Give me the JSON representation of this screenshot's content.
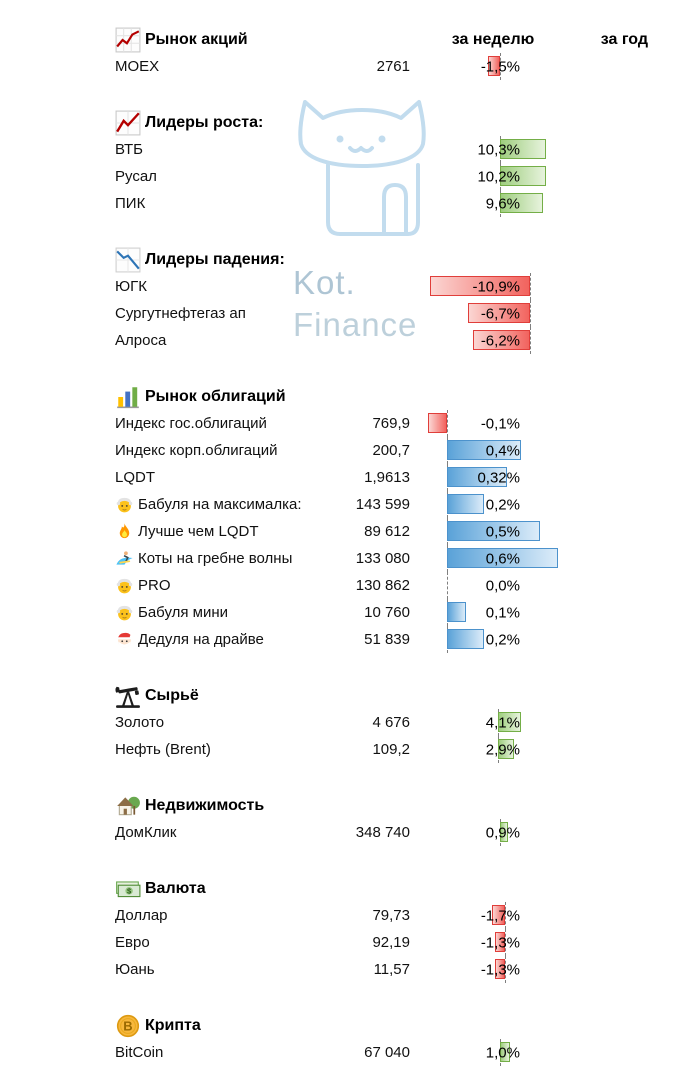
{
  "watermark": {
    "line1": "Kot.",
    "line2": "Finance"
  },
  "colors": {
    "positive_green": "#74ae47",
    "positive_blue": "#4c92cc",
    "negative_red": "#e03e3a",
    "watermark_blue": "#bcd8ec"
  },
  "chart_data": {
    "type": "table",
    "columns": {
      "week": "за неделю",
      "year": "за год"
    },
    "groups": [
      {
        "id": "stocks",
        "title": "Рынок акций",
        "icon": "stock-chart-icon",
        "bar_color": "green",
        "rows": [
          {
            "label": "MOEX",
            "value": "2761",
            "change": "-1,5%",
            "change_pct": -1.5
          }
        ]
      },
      {
        "id": "growth",
        "title": "Лидеры роста:",
        "icon": "growth-chart-icon",
        "bar_color": "green",
        "rows": [
          {
            "label": "ВТБ",
            "value": "",
            "change": "10,3%",
            "change_pct": 10.3
          },
          {
            "label": "Русал",
            "value": "",
            "change": "10,2%",
            "change_pct": 10.2
          },
          {
            "label": "ПИК",
            "value": "",
            "change": "9,6%",
            "change_pct": 9.6
          }
        ]
      },
      {
        "id": "fall",
        "title": "Лидеры падения:",
        "icon": "fall-chart-icon",
        "bar_color": "green",
        "rows": [
          {
            "label": "ЮГК",
            "value": "",
            "change": "-10,9%",
            "change_pct": -10.9
          },
          {
            "label": "Сургутнефтегаз ап",
            "value": "",
            "change": "-6,7%",
            "change_pct": -6.7
          },
          {
            "label": "Алроса",
            "value": "",
            "change": "-6,2%",
            "change_pct": -6.2
          }
        ]
      },
      {
        "id": "bonds",
        "title": "Рынок облигаций",
        "icon": "bond-chart-icon",
        "bar_color": "blue",
        "rows": [
          {
            "label": "Индекс гос.облигаций",
            "value": "769,9",
            "change": "-0,1%",
            "change_pct": -0.1
          },
          {
            "label": "Индекс корп.облигаций",
            "value": "200,7",
            "change": "0,4%",
            "change_pct": 0.4
          },
          {
            "label": "LQDT",
            "value": "1,9613",
            "change": "0,32%",
            "change_pct": 0.32
          },
          {
            "label": "Бабуля на максималка:",
            "icon": "grandma-icon",
            "value": "143 599",
            "change": "0,2%",
            "change_pct": 0.2
          },
          {
            "label": "Лучше чем LQDT",
            "icon": "fire-icon",
            "value": "89 612",
            "change": "0,5%",
            "change_pct": 0.5
          },
          {
            "label": "Коты на гребне волны",
            "icon": "surfer-icon",
            "value": "133 080",
            "change": "0,6%",
            "change_pct": 0.6
          },
          {
            "label": "PRO",
            "icon": "grandma-icon",
            "value": "130 862",
            "change": "0,0%",
            "change_pct": 0.0
          },
          {
            "label": "Бабуля мини",
            "icon": "grandma-icon",
            "value": "10 760",
            "change": "0,1%",
            "change_pct": 0.1
          },
          {
            "label": "Дедуля на драйве",
            "icon": "santa-icon",
            "value": "51 839",
            "change": "0,2%",
            "change_pct": 0.2
          }
        ]
      },
      {
        "id": "commodities",
        "title": "Сырьё",
        "icon": "oil-pump-icon",
        "bar_color": "green",
        "rows": [
          {
            "label": "Золото",
            "value": "4 676",
            "change": "4,1%",
            "change_pct": 4.1
          },
          {
            "label": "Нефть (Brent)",
            "value": "109,2",
            "change": "2,9%",
            "change_pct": 2.9
          }
        ]
      },
      {
        "id": "realestate",
        "title": "Недвижимость",
        "icon": "house-icon",
        "bar_color": "green",
        "rows": [
          {
            "label": "ДомКлик",
            "value": "348 740",
            "change": "0,9%",
            "change_pct": 0.9
          }
        ]
      },
      {
        "id": "currency",
        "title": "Валюта",
        "icon": "money-icon",
        "bar_color": "green",
        "rows": [
          {
            "label": "Доллар",
            "value": "79,73",
            "change": "-1,7%",
            "change_pct": -1.7
          },
          {
            "label": "Евро",
            "value": "92,19",
            "change": "-1,3%",
            "change_pct": -1.3
          },
          {
            "label": "Юань",
            "value": "11,57",
            "change": "-1,3%",
            "change_pct": -1.3
          }
        ]
      },
      {
        "id": "crypto",
        "title": "Крипта",
        "icon": "bitcoin-icon",
        "bar_color": "green",
        "rows": [
          {
            "label": "BitCoin",
            "value": "67 040",
            "change": "1,0%",
            "change_pct": 1.0
          }
        ]
      }
    ]
  }
}
